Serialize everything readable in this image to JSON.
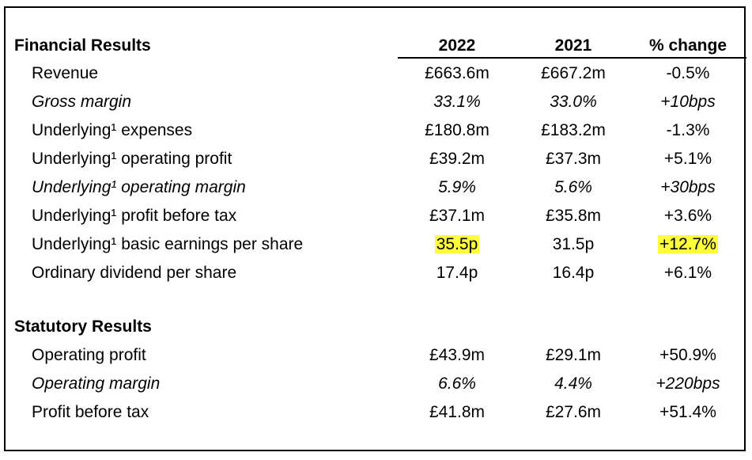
{
  "financial": {
    "heading": "Financial Results",
    "col_2022": "2022",
    "col_2021": "2021",
    "col_change": "% change",
    "rows": [
      {
        "label": "Revenue",
        "v2022": "£663.6m",
        "v2021": "£667.2m",
        "change": "-0.5%"
      },
      {
        "label": "Gross margin",
        "v2022": "33.1%",
        "v2021": "33.0%",
        "change": "+10bps"
      },
      {
        "label": "Underlying¹ expenses",
        "v2022": "£180.8m",
        "v2021": "£183.2m",
        "change": "-1.3%"
      },
      {
        "label": "Underlying¹ operating profit",
        "v2022": "£39.2m",
        "v2021": "£37.3m",
        "change": "+5.1%"
      },
      {
        "label": "Underlying¹ operating margin",
        "v2022": "5.9%",
        "v2021": "5.6%",
        "change": "+30bps"
      },
      {
        "label": "Underlying¹ profit before tax",
        "v2022": "£37.1m",
        "v2021": "£35.8m",
        "change": "+3.6%"
      },
      {
        "label": "Underlying¹ basic earnings per share",
        "v2022": "35.5p",
        "v2021": "31.5p",
        "change": "+12.7%"
      },
      {
        "label": "Ordinary dividend per share",
        "v2022": "17.4p",
        "v2021": "16.4p",
        "change": "+6.1%"
      }
    ]
  },
  "statutory": {
    "heading": "Statutory Results",
    "rows": [
      {
        "label": "Operating profit",
        "v2022": "£43.9m",
        "v2021": "£29.1m",
        "change": "+50.9%"
      },
      {
        "label": "Operating margin",
        "v2022": "6.6%",
        "v2021": "4.4%",
        "change": "+220bps"
      },
      {
        "label": "Profit before tax",
        "v2022": "£41.8m",
        "v2021": "£27.6m",
        "change": "+51.4%"
      }
    ]
  },
  "highlight_color": "#ffff3a"
}
